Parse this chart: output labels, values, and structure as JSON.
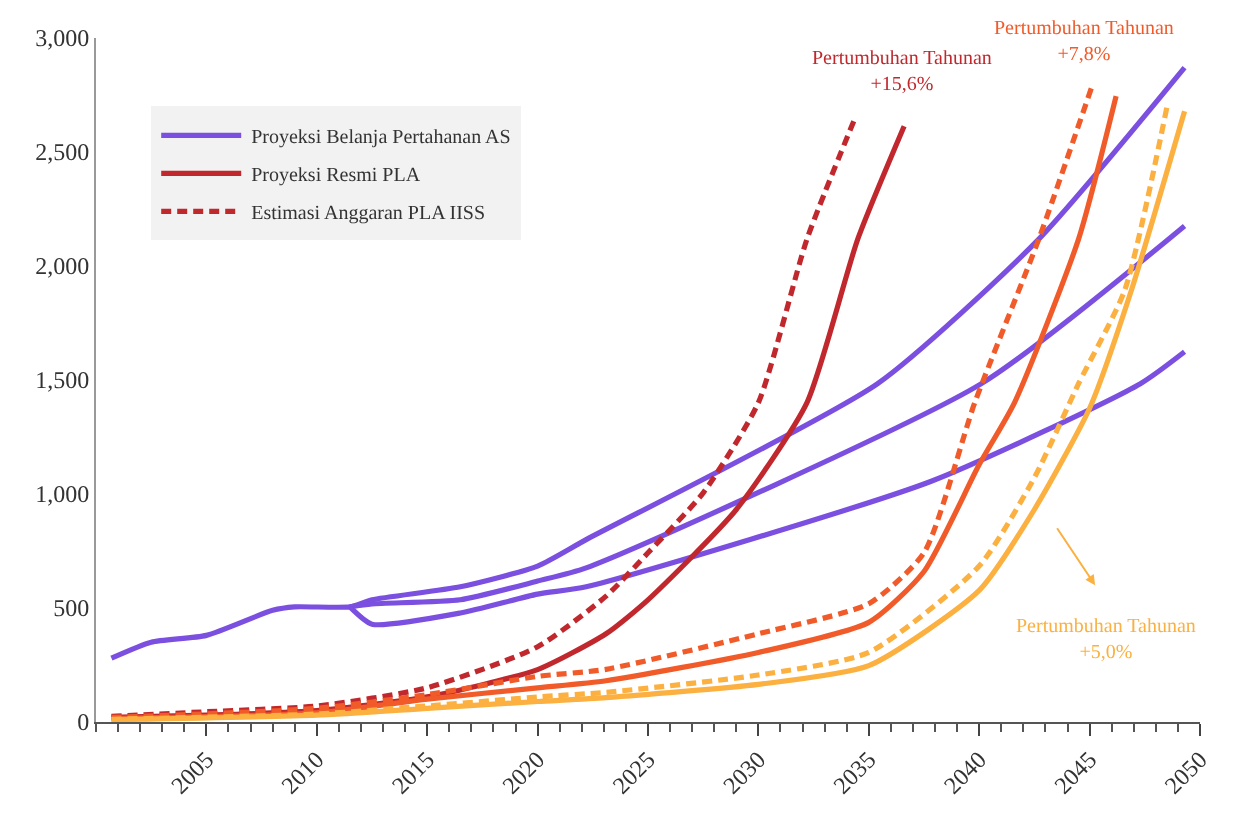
{
  "chart_data": {
    "type": "line",
    "series": [
      {
        "name": "Proyeksi Belanja Pertahanan AS",
        "color": "#7b4fe0",
        "x": [
          2000.7,
          2002.5,
          2005,
          2008,
          2009,
          2011.5,
          2012.5,
          2016.5,
          2020,
          2022.2,
          2035.4,
          2042.7,
          2049.3
        ],
        "values": [
          280,
          350,
          380,
          490,
          505,
          505,
          536,
          593,
          684,
          800,
          1484,
          2118,
          2870
        ]
      },
      {
        "color": "#7b4fe0",
        "x": [
          2011.5,
          2012.5,
          2016.5,
          2020,
          2022.2,
          2040.1,
          2049.3
        ],
        "values": [
          505,
          518,
          536,
          618,
          676,
          1484,
          2176
        ]
      },
      {
        "color": "#7b4fe0",
        "x": [
          2011.5,
          2012.5,
          2016.5,
          2020,
          2022.2,
          2037.8,
          2047.3,
          2049.3
        ],
        "values": [
          505,
          429,
          478,
          561,
          593,
          1055,
          1484,
          1624
        ]
      },
      {
        "name": "Proyeksi Resmi PLA",
        "color": "#c0282d",
        "x": [
          2000.7,
          2005,
          2010,
          2015,
          2020,
          2023.1,
          2025,
          2029,
          2032.2,
          2034.5,
          2036.6
        ],
        "values": [
          20,
          30,
          50,
          110,
          230,
          387,
          536,
          932,
          1401,
          2118,
          2613
        ]
      },
      {
        "name": "Estimasi Anggaran PLA IISS",
        "color": "#c0282d",
        "line_style": "dashed",
        "x": [
          2000.7,
          2005,
          2010,
          2015,
          2020,
          2023.1,
          2025,
          2027.5,
          2030,
          2032.2,
          2034.4
        ],
        "values": [
          25,
          45,
          70,
          150,
          330,
          552,
          742,
          1005,
          1401,
          2118,
          2654
        ]
      },
      {
        "color": "#f15a29",
        "x": [
          2000.7,
          2010,
          2015,
          2020,
          2023.1,
          2030,
          2035,
          2037.5,
          2040,
          2041.6,
          2044.5,
          2046.2
        ],
        "values": [
          15,
          40,
          100,
          150,
          181,
          305,
          437,
          660,
          1129,
          1401,
          2118,
          2745
        ]
      },
      {
        "color": "#f15a29",
        "line_style": "dashed",
        "x": [
          2000.7,
          2010,
          2015,
          2020,
          2023.1,
          2030,
          2035,
          2037.5,
          2039.8,
          2042.7,
          2045.1
        ],
        "values": [
          20,
          60,
          120,
          200,
          231,
          387,
          519,
          742,
          1401,
          2118,
          2786
        ]
      },
      {
        "color": "#fbb040",
        "x": [
          2000.7,
          2010,
          2015,
          2020,
          2023.1,
          2030,
          2035,
          2040,
          2042.5,
          2045,
          2046.9,
          2049.3
        ],
        "values": [
          10,
          30,
          60,
          90,
          107,
          165,
          247,
          577,
          932,
          1376,
          1896,
          2679
        ]
      },
      {
        "color": "#fbb040",
        "line_style": "dashed",
        "x": [
          2000.7,
          2010,
          2015,
          2020,
          2023.1,
          2030,
          2035,
          2040,
          2042.5,
          2044.5,
          2046.6,
          2048.5
        ],
        "values": [
          12,
          35,
          70,
          110,
          130,
          206,
          305,
          684,
          1072,
          1484,
          1896,
          2696
        ]
      }
    ],
    "annotations": [
      "Pertumbuhan Tahunan\n+15,6%",
      "Pertumbuhan Tahunan\n+7,8%",
      "Pertumbuhan Tahunan\n+5,0%"
    ],
    "xlim": [
      2000,
      2050
    ],
    "xticks": [
      2005,
      2010,
      2015,
      2020,
      2025,
      2030,
      2035,
      2040,
      2045,
      2050
    ],
    "ylim": [
      0,
      3000
    ],
    "yticks": [
      {
        "value": 0,
        "label": "0"
      },
      {
        "value": 500,
        "label": "500"
      },
      {
        "value": 1000,
        "label": "1,000"
      },
      {
        "value": 1500,
        "label": "1,500"
      },
      {
        "value": 2000,
        "label": "2,000"
      },
      {
        "value": 2500,
        "label": "2,500"
      },
      {
        "value": 3000,
        "label": "3,000"
      }
    ],
    "legend": "top left",
    "marker": "none"
  }
}
